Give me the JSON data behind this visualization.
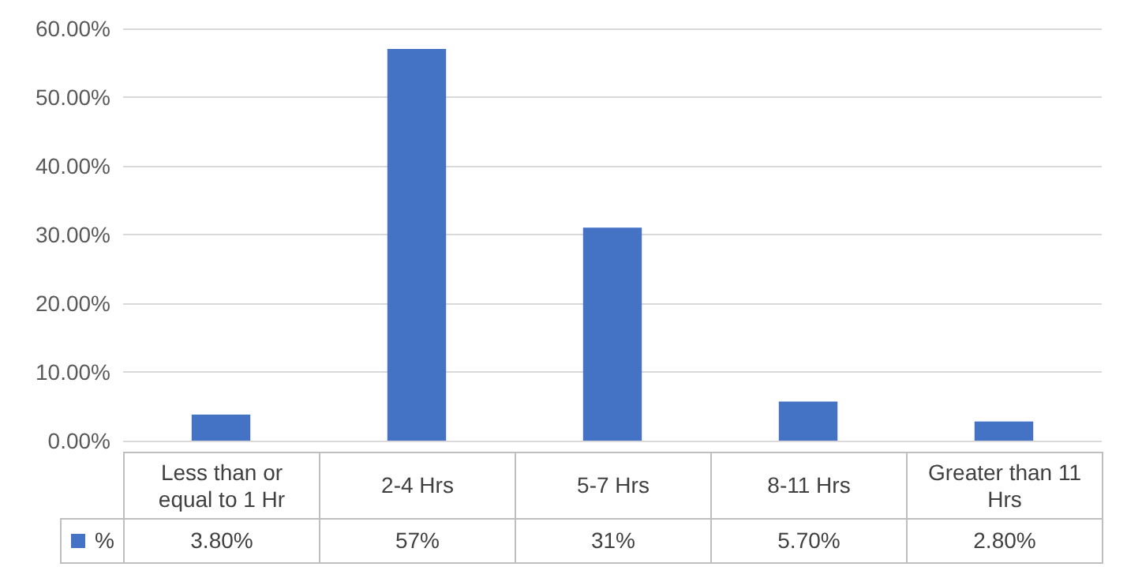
{
  "chart_data": {
    "type": "bar",
    "categories": [
      "Less than or equal to 1 Hr",
      "2-4 Hrs",
      "5-7 Hrs",
      "8-11 Hrs",
      "Greater than 11 Hrs"
    ],
    "series": [
      {
        "name": "%",
        "color": "#4472c4",
        "values": [
          3.8,
          57,
          31,
          5.7,
          2.8
        ],
        "value_labels": [
          "3.80%",
          "57%",
          "31%",
          "5.70%",
          "2.80%"
        ]
      }
    ],
    "ylim": [
      0,
      60
    ],
    "yticks": [
      {
        "value": 0,
        "label": "0.00%"
      },
      {
        "value": 10,
        "label": "10.00%"
      },
      {
        "value": 20,
        "label": "20.00%"
      },
      {
        "value": 30,
        "label": "30.00%"
      },
      {
        "value": 40,
        "label": "40.00%"
      },
      {
        "value": 50,
        "label": "50.00%"
      },
      {
        "value": 60,
        "label": "60.00%"
      }
    ],
    "grid": "y"
  }
}
